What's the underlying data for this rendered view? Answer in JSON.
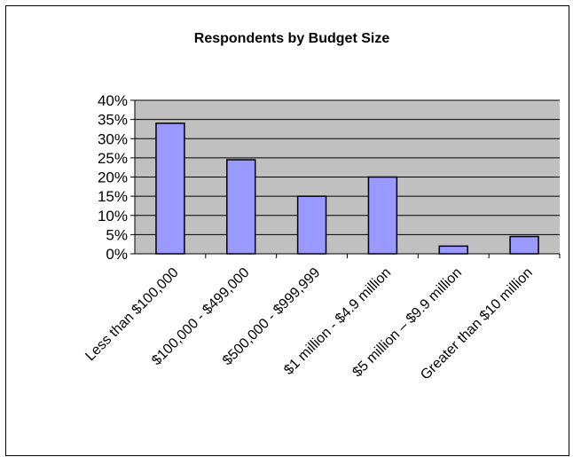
{
  "chart_data": {
    "type": "bar",
    "title": "Respondents by Budget Size",
    "xlabel": "",
    "ylabel": "",
    "categories": [
      "Less than $100,000",
      "$100,000 - $499,000",
      "$500,000 - $999,999",
      "$1 million - $4.9 million",
      "$5 million – $9.9 million",
      "Greater than $10 million"
    ],
    "values": [
      34,
      24.5,
      15,
      20,
      2,
      4.5
    ],
    "ylim": [
      0,
      40
    ],
    "y_ticks": [
      "0%",
      "5%",
      "10%",
      "15%",
      "20%",
      "25%",
      "30%",
      "35%",
      "40%"
    ],
    "grid": true,
    "legend": "none",
    "colors": {
      "bar_fill": "#9999ff",
      "bar_stroke": "#000000",
      "plot_background": "#c0c0c0",
      "gridline": "#000000"
    }
  }
}
